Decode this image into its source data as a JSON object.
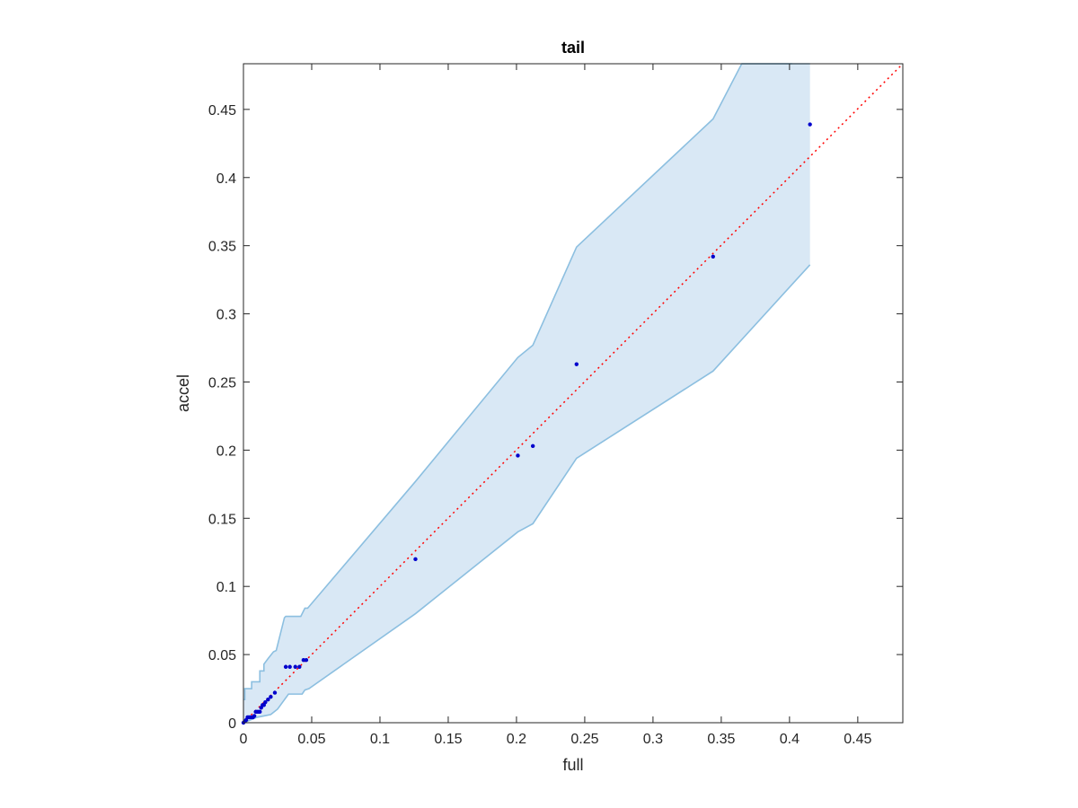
{
  "chart_data": {
    "type": "scatter",
    "title": "tail",
    "xlabel": "full",
    "ylabel": "accel",
    "xlim": [
      0,
      0.483
    ],
    "ylim": [
      0,
      0.4835
    ],
    "xticks": [
      "0",
      "0.05",
      "0.1",
      "0.15",
      "0.2",
      "0.25",
      "0.3",
      "0.35",
      "0.4",
      "0.45"
    ],
    "yticks": [
      "0",
      "0.05",
      "0.1",
      "0.15",
      "0.2",
      "0.25",
      "0.3",
      "0.35",
      "0.4",
      "0.45"
    ],
    "grid": false,
    "legend": "none",
    "points": {
      "x": [
        0,
        0.001,
        0.002,
        0.003,
        0.004,
        0.005,
        0.006,
        0.007,
        0.008,
        0.009,
        0.01,
        0.011,
        0.012,
        0.013,
        0.014,
        0.015,
        0.016,
        0.018,
        0.02,
        0.023,
        0.031,
        0.034,
        0.038,
        0.041,
        0.044,
        0.046,
        0.126,
        0.201,
        0.212,
        0.244,
        0.344,
        0.415
      ],
      "y": [
        0,
        0.001,
        0.002,
        0.004,
        0.004,
        0.004,
        0.004,
        0.004,
        0.005,
        0.008,
        0.008,
        0.008,
        0.008,
        0.011,
        0.013,
        0.013,
        0.015,
        0.017,
        0.019,
        0.022,
        0.041,
        0.041,
        0.041,
        0.041,
        0.046,
        0.046,
        0.12,
        0.196,
        0.203,
        0.263,
        0.342,
        0.439
      ],
      "color": "#0000cc"
    },
    "reference_line": {
      "from": [
        0,
        0
      ],
      "to": [
        0.483,
        0.4835
      ],
      "color": "#ff0000",
      "style": "dotted"
    },
    "band": {
      "upper": {
        "x": [
          0,
          0.001,
          0.001,
          0.006,
          0.006,
          0.012,
          0.012,
          0.015,
          0.015,
          0.018,
          0.022,
          0.024,
          0.03,
          0.031,
          0.042,
          0.045,
          0.047,
          0.126,
          0.201,
          0.212,
          0.244,
          0.344,
          0.365,
          0.402
        ],
        "y": [
          0.017,
          0.017,
          0.025,
          0.025,
          0.03,
          0.03,
          0.038,
          0.038,
          0.043,
          0.047,
          0.052,
          0.053,
          0.077,
          0.078,
          0.078,
          0.084,
          0.084,
          0.177,
          0.268,
          0.277,
          0.349,
          0.443,
          0.4835,
          0.4835
        ]
      },
      "top_cap_x": [
        0.365,
        0.415
      ],
      "lower": {
        "x": [
          0,
          0.005,
          0.01,
          0.015,
          0.02,
          0.025,
          0.033,
          0.043,
          0.045,
          0.048,
          0.126,
          0.201,
          0.212,
          0.244,
          0.344,
          0.415
        ],
        "y": [
          0,
          0.002,
          0.004,
          0.005,
          0.006,
          0.01,
          0.021,
          0.021,
          0.024,
          0.025,
          0.08,
          0.14,
          0.146,
          0.194,
          0.258,
          0.336
        ]
      },
      "fill_color": "#d9e8f5",
      "edge_color": "#8cbfe0"
    },
    "axis_color": "#262626"
  }
}
